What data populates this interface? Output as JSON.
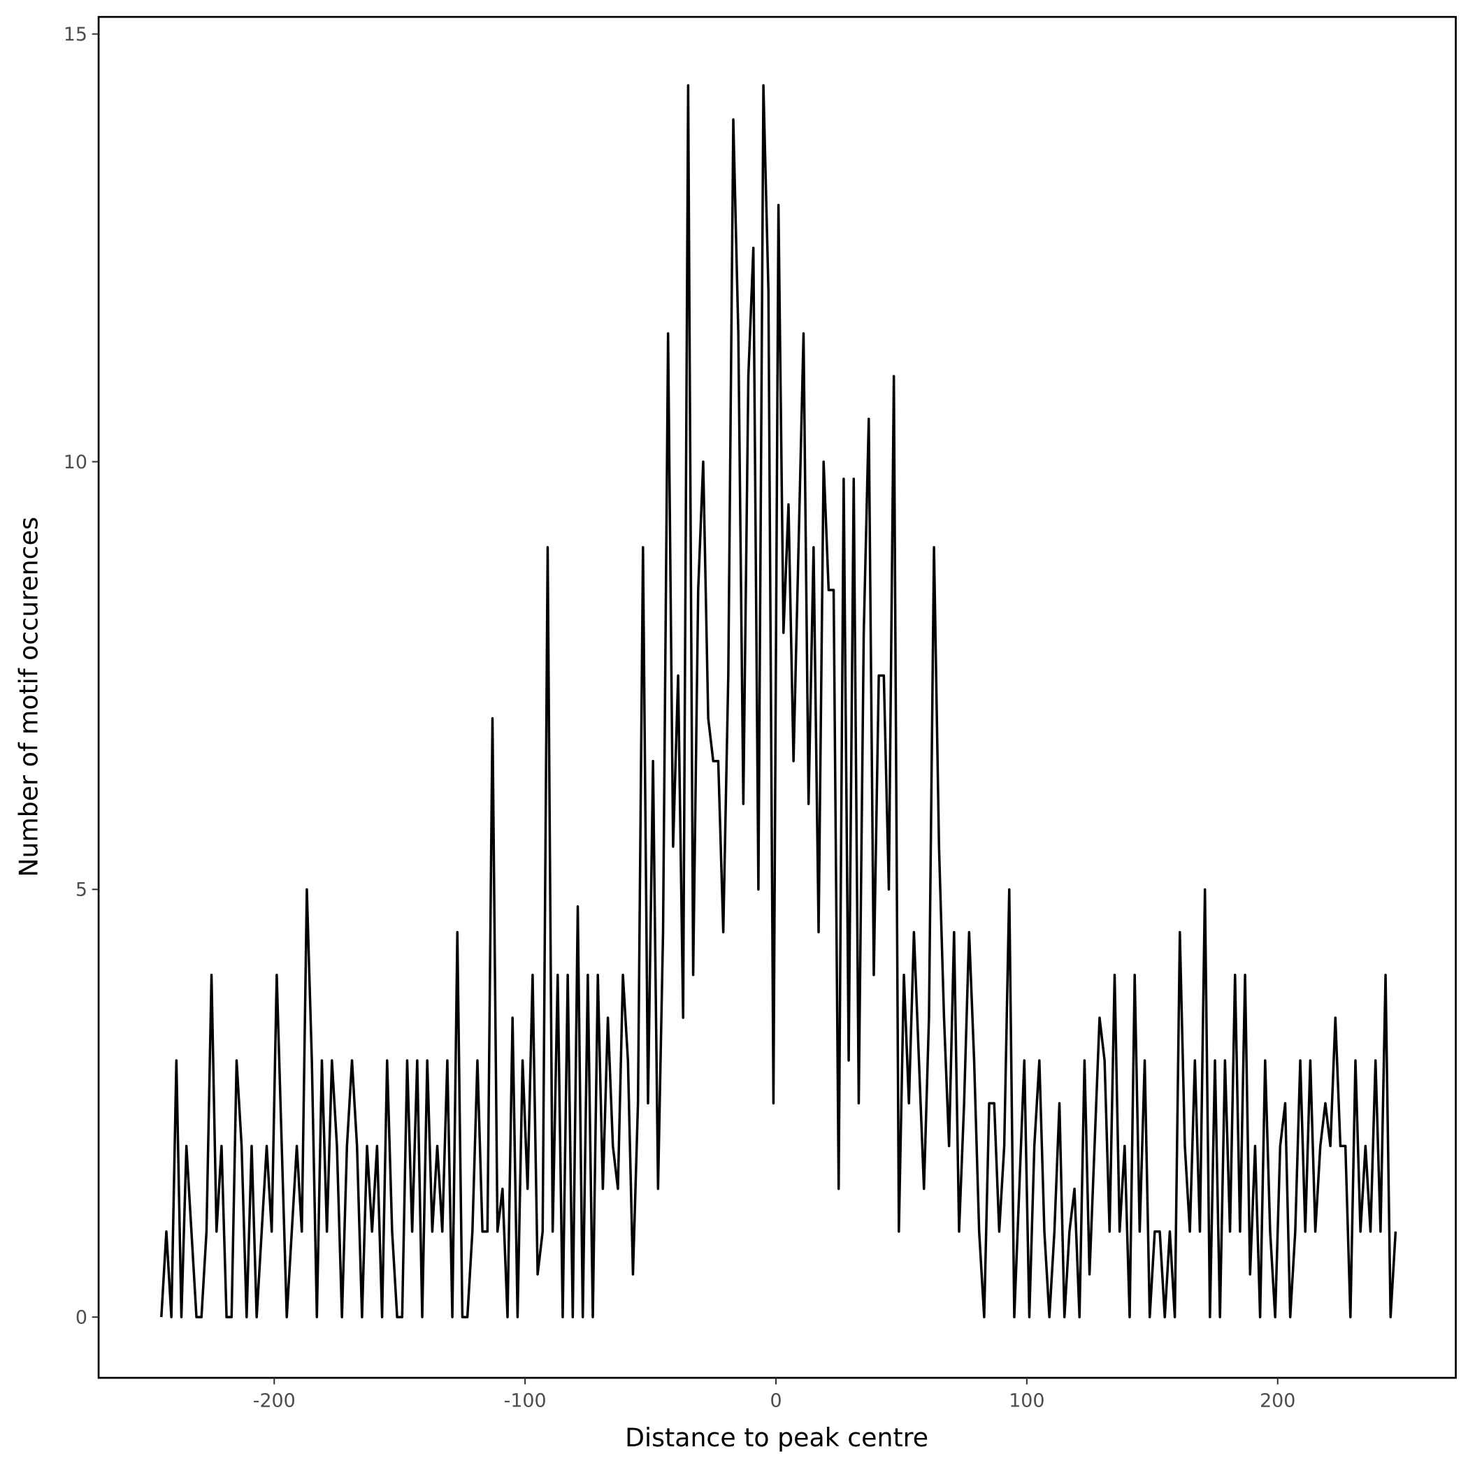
{
  "chart_data": {
    "type": "line",
    "x_label": "Distance to peak centre",
    "y_label": "Number of motif occurences",
    "x": [
      -245,
      -243,
      -241,
      -239,
      -237,
      -235,
      -233,
      -231,
      -229,
      -227,
      -225,
      -223,
      -221,
      -219,
      -217,
      -215,
      -213,
      -211,
      -209,
      -207,
      -205,
      -203,
      -201,
      -199,
      -197,
      -195,
      -193,
      -191,
      -189,
      -187,
      -185,
      -183,
      -181,
      -179,
      -177,
      -175,
      -173,
      -171,
      -169,
      -167,
      -165,
      -163,
      -161,
      -159,
      -157,
      -155,
      -153,
      -151,
      -149,
      -147,
      -145,
      -143,
      -141,
      -139,
      -137,
      -135,
      -133,
      -131,
      -129,
      -127,
      -125,
      -123,
      -121,
      -119,
      -117,
      -115,
      -113,
      -111,
      -109,
      -107,
      -105,
      -103,
      -101,
      -99,
      -97,
      -95,
      -93,
      -91,
      -89,
      -87,
      -85,
      -83,
      -81,
      -79,
      -77,
      -75,
      -73,
      -71,
      -69,
      -67,
      -65,
      -63,
      -61,
      -59,
      -57,
      -55,
      -53,
      -51,
      -49,
      -47,
      -45,
      -43,
      -41,
      -39,
      -37,
      -35,
      -33,
      -31,
      -29,
      -27,
      -25,
      -23,
      -21,
      -19,
      -17,
      -15,
      -13,
      -11,
      -9,
      -7,
      -5,
      -3,
      -1,
      1,
      3,
      5,
      7,
      9,
      11,
      13,
      15,
      17,
      19,
      21,
      23,
      25,
      27,
      29,
      31,
      33,
      35,
      37,
      39,
      41,
      43,
      45,
      47,
      49,
      51,
      53,
      55,
      57,
      59,
      61,
      63,
      65,
      67,
      69,
      71,
      73,
      75,
      77,
      79,
      81,
      83,
      85,
      87,
      89,
      91,
      93,
      95,
      97,
      99,
      101,
      103,
      105,
      107,
      109,
      111,
      113,
      115,
      117,
      119,
      121,
      123,
      125,
      127,
      129,
      131,
      133,
      135,
      137,
      139,
      141,
      143,
      145,
      147,
      149,
      151,
      153,
      155,
      157,
      159,
      161,
      163,
      165,
      167,
      169,
      171,
      173,
      175,
      177,
      179,
      181,
      183,
      185,
      187,
      189,
      191,
      193,
      195,
      197,
      199,
      201,
      203,
      205,
      207,
      209,
      211,
      213,
      215,
      217,
      219,
      221,
      223,
      225,
      227,
      229,
      231,
      233,
      235,
      237,
      239,
      241,
      243,
      245,
      247
    ],
    "series": [
      {
        "color": "#000000",
        "values": [
          0,
          1,
          0,
          3,
          0,
          2,
          1,
          0,
          0,
          1,
          4,
          1,
          2,
          0,
          0,
          3,
          2,
          0,
          2,
          0,
          1,
          2,
          1,
          4,
          2,
          0,
          1,
          2,
          1,
          5,
          3,
          0,
          3,
          1,
          3,
          2,
          0,
          2,
          3,
          2,
          0,
          2,
          1,
          2,
          0,
          3,
          1,
          0,
          0,
          3,
          1,
          3,
          0,
          3,
          1,
          2,
          1,
          3,
          0,
          4.5,
          0,
          0,
          1,
          3,
          1,
          1,
          7,
          1,
          1.5,
          0,
          3.5,
          0,
          3,
          1.5,
          4,
          0.5,
          1,
          9,
          1,
          4,
          0,
          4,
          0,
          4.8,
          0,
          4,
          0,
          4,
          1.5,
          3.5,
          2,
          1.5,
          4,
          3,
          0.5,
          2.5,
          9,
          2.5,
          6.5,
          1.5,
          4.5,
          11.5,
          5.5,
          7.5,
          3.5,
          14.4,
          4,
          8.5,
          10,
          7,
          6.5,
          6.5,
          4.5,
          7.5,
          14,
          11.5,
          6,
          11,
          12.5,
          5,
          14.4,
          12,
          2.5,
          13,
          8,
          9.5,
          6.5,
          9,
          11.5,
          6,
          9,
          4.5,
          10,
          8.5,
          8.5,
          1.5,
          9.8,
          3,
          9.8,
          2.5,
          8,
          10.5,
          4,
          7.5,
          7.5,
          5,
          11,
          1,
          4,
          2.5,
          4.5,
          3,
          1.5,
          3.5,
          9,
          5.5,
          3.5,
          2,
          4.5,
          1,
          2.5,
          4.5,
          3,
          1,
          0,
          2.5,
          2.5,
          1,
          2,
          5,
          0,
          1.5,
          3,
          0,
          2,
          3,
          1,
          0,
          1,
          2.5,
          0,
          1,
          1.5,
          0,
          3,
          0.5,
          2,
          3.5,
          3,
          1,
          4,
          1,
          2,
          0,
          4,
          1,
          3,
          0,
          1,
          1,
          0,
          1,
          0,
          4.5,
          2,
          1,
          3,
          1,
          5,
          0,
          3,
          0,
          3,
          1,
          4,
          1,
          4,
          0.5,
          2,
          0,
          3,
          1,
          0,
          2,
          2.5,
          0,
          1,
          3,
          1,
          3,
          1,
          2,
          2.5,
          2,
          3.5,
          2,
          2,
          0,
          3,
          1,
          2,
          1,
          3,
          1,
          4,
          0,
          1
        ]
      }
    ],
    "xlim": [
      -270,
      271
    ],
    "ylim": [
      -0.71,
      15.2
    ],
    "xticks": [
      -200,
      -100,
      0,
      100,
      200
    ],
    "yticks": [
      0,
      5,
      10,
      15
    ],
    "grid": false
  }
}
